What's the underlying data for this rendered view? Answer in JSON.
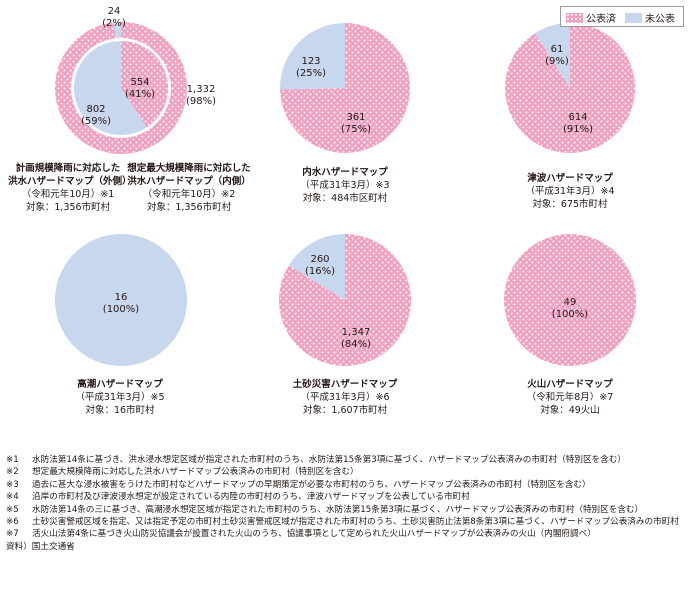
{
  "legend": {
    "published": "公表済",
    "unpublished": "未公表"
  },
  "colors": {
    "published": "#f2a0c0",
    "unpublished": "#c7d7ee",
    "dot": "#ffffff"
  },
  "chart_data": [
    {
      "id": "flood",
      "type": "pie",
      "rings": [
        {
          "ring": "outer",
          "labels": [
            "公表済",
            "未公表"
          ],
          "values": [
            1332,
            24
          ],
          "value_texts": [
            "1,332",
            "24"
          ],
          "percents": [
            "(98%)",
            "(2%)"
          ]
        },
        {
          "ring": "inner",
          "labels": [
            "公表済",
            "未公表"
          ],
          "values": [
            554,
            802
          ],
          "value_texts": [
            "554",
            "802"
          ],
          "percents": [
            "(41%)",
            "(59%)"
          ]
        }
      ],
      "caption_left": [
        "計画規模降雨に対応した",
        "洪水ハザードマップ（外側）",
        "（令和元年10月）※1"
      ],
      "caption_right": [
        "想定最大規模降雨に対応した",
        "洪水ハザードマップ（内側）",
        "（令和元年10月）※2"
      ],
      "target_left": "対象：1,356市町村",
      "target_right": "対象：1,356市町村"
    },
    {
      "id": "inland",
      "type": "pie",
      "labels": [
        "公表済",
        "未公表"
      ],
      "values": [
        361,
        123
      ],
      "value_texts": [
        "361",
        "123"
      ],
      "percents": [
        "(75%)",
        "(25%)"
      ],
      "title": "内水ハザードマップ",
      "date": "（平成31年3月）※3",
      "target": "対象：484市区町村"
    },
    {
      "id": "tsunami",
      "type": "pie",
      "labels": [
        "公表済",
        "未公表"
      ],
      "values": [
        614,
        61
      ],
      "value_texts": [
        "614",
        "61"
      ],
      "percents": [
        "(91%)",
        "(9%)"
      ],
      "title": "津波ハザードマップ",
      "date": "（平成31年3月）※4",
      "target": "対象：675市町村"
    },
    {
      "id": "storm_surge",
      "type": "pie",
      "labels": [
        "公表済",
        "未公表"
      ],
      "values": [
        0,
        16
      ],
      "value_texts": [
        "",
        "16"
      ],
      "percents": [
        "",
        "(100%)"
      ],
      "title": "高潮ハザードマップ",
      "date": "（平成31年3月）※5",
      "target": "対象：16市町村"
    },
    {
      "id": "landslide",
      "type": "pie",
      "labels": [
        "公表済",
        "未公表"
      ],
      "values": [
        1347,
        260
      ],
      "value_texts": [
        "1,347",
        "260"
      ],
      "percents": [
        "(84%)",
        "(16%)"
      ],
      "title": "土砂災害ハザードマップ",
      "date": "（平成31年3月）※6",
      "target": "対象：1,607市町村"
    },
    {
      "id": "volcano",
      "type": "pie",
      "labels": [
        "公表済",
        "未公表"
      ],
      "values": [
        49,
        0
      ],
      "value_texts": [
        "49",
        ""
      ],
      "percents": [
        "(100%)",
        ""
      ],
      "title": "火山ハザードマップ",
      "date": "（令和元年8月）※7",
      "target": "対象：49火山"
    }
  ],
  "notes": [
    {
      "mark": "※1",
      "text": "水防法第14条に基づき、洪水浸水想定区域が指定された市町村のうち、水防法第15条第3項に基づく、ハザードマップ公表済みの市町村（特別区を含む）"
    },
    {
      "mark": "※2",
      "text": "想定最大規模降雨に対応した洪水ハザードマップ公表済みの市町村（特別区を含む）"
    },
    {
      "mark": "※3",
      "text": "過去に甚大な浸水被害をうけた市町村などハザードマップの早期策定が必要な市町村のうち、ハザードマップ公表済みの市町村（特別区を含む）"
    },
    {
      "mark": "※4",
      "text": "沿岸の市町村及び津波浸水想定が設定されている内陸の市町村のうち、津波ハザードマップを公表している市町村"
    },
    {
      "mark": "※5",
      "text": "水防法第14条の三に基づき、高潮浸水想定区域が指定された市町村のうち、水防法第15条第3項に基づく、ハザードマップ公表済みの市町村（特別区を含む）"
    },
    {
      "mark": "※6",
      "text": "土砂災害警戒区域を指定、又は指定予定の市町村土砂災害警戒区域が指定された市町村のうち、土砂災害防止法第8条第3項に基づく、ハザードマップ公表済みの市町村"
    },
    {
      "mark": "※7",
      "text": "活火山法第4条に基づき火山防災協議会が設置された火山のうち、協議事項として定められた火山ハザードマップが公表済みの火山（内閣府調べ）"
    }
  ],
  "source": "資料）国土交通省"
}
